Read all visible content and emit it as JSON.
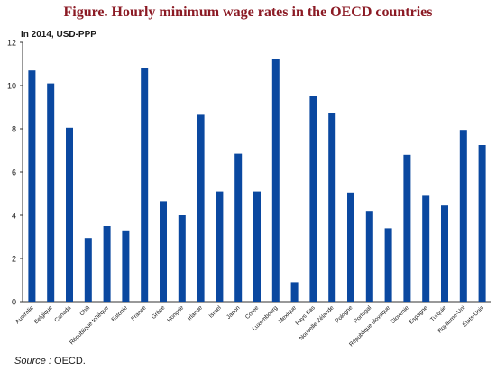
{
  "chart_data": {
    "type": "bar",
    "title": "Figure. Hourly minimum wage rates in the OECD countries",
    "unit_label": "In 2014, USD-PPP",
    "ylim": [
      0,
      12
    ],
    "yticks": [
      0,
      2,
      4,
      6,
      8,
      10,
      12
    ],
    "grid": false,
    "bar_color": "#0a48a0",
    "categories": [
      "Australie",
      "Belgique",
      "Canada",
      "Chili",
      "République tchèque",
      "Estonie",
      "France",
      "Grèce",
      "Hongrie",
      "Irlande",
      "Israel",
      "Japon",
      "Corée",
      "Luxembourg",
      "Mexique",
      "Pays Bas",
      "Nouvelle-Zélande",
      "Pologne",
      "Portugal",
      "République slovaque",
      "Slovenie",
      "Espagne",
      "Turquie",
      "Royaume-Uni",
      "États-Unis"
    ],
    "values": [
      10.7,
      10.1,
      8.05,
      2.95,
      3.5,
      3.3,
      10.8,
      4.65,
      4.0,
      8.65,
      5.1,
      6.85,
      5.1,
      11.25,
      0.9,
      9.5,
      8.75,
      5.05,
      4.2,
      3.4,
      6.8,
      4.9,
      4.45,
      7.95,
      7.25
    ]
  },
  "source": {
    "key": "Source :",
    "text": " OECD."
  }
}
